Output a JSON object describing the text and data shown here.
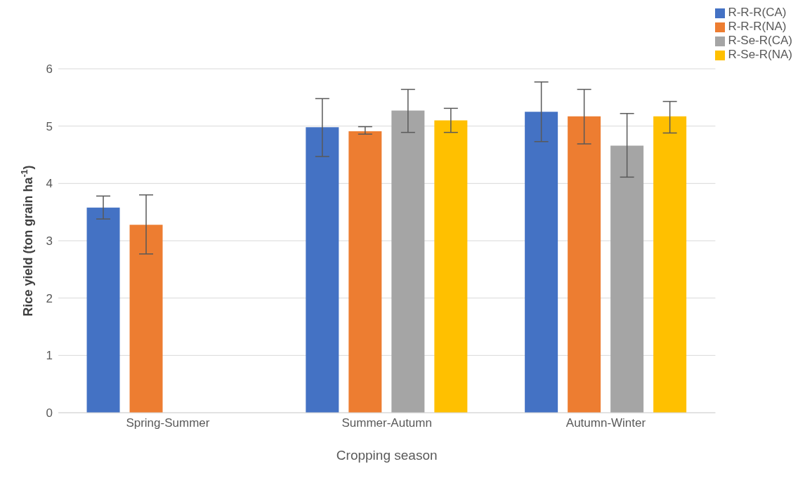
{
  "chart_data": {
    "type": "bar",
    "xlabel": "Cropping season",
    "ylabel": "Rice yield (ton grain ha$^{-1}$)",
    "categories": [
      "Spring-Summer",
      "Summer-Autumn",
      "Autumn-Winter"
    ],
    "series": [
      {
        "name": "R-R-R(CA)",
        "color": "#4472c4",
        "values": [
          3.58,
          4.98,
          5.25
        ],
        "errors": [
          [
            3.38,
            3.78
          ],
          [
            4.47,
            5.48
          ],
          [
            4.73,
            5.77
          ]
        ]
      },
      {
        "name": "R-R-R(NA)",
        "color": "#ed7d31",
        "values": [
          3.28,
          4.91,
          5.17
        ],
        "errors": [
          [
            2.77,
            3.8
          ],
          [
            4.86,
            4.99
          ],
          [
            4.69,
            5.64
          ]
        ]
      },
      {
        "name": "R-Se-R(CA)",
        "color": "#a5a5a5",
        "values": [
          null,
          5.27,
          4.66
        ],
        "errors": [
          null,
          [
            4.89,
            5.64
          ],
          [
            4.11,
            5.22
          ]
        ]
      },
      {
        "name": "R-Se-R(NA)",
        "color": "#ffc000",
        "values": [
          null,
          5.1,
          5.17
        ],
        "errors": [
          null,
          [
            4.89,
            5.31
          ],
          [
            4.88,
            5.43
          ]
        ]
      }
    ],
    "ylim": [
      0,
      6
    ],
    "yticks": [
      0,
      1,
      2,
      3,
      4,
      5,
      6
    ],
    "grid": "y",
    "legend": "top right"
  }
}
